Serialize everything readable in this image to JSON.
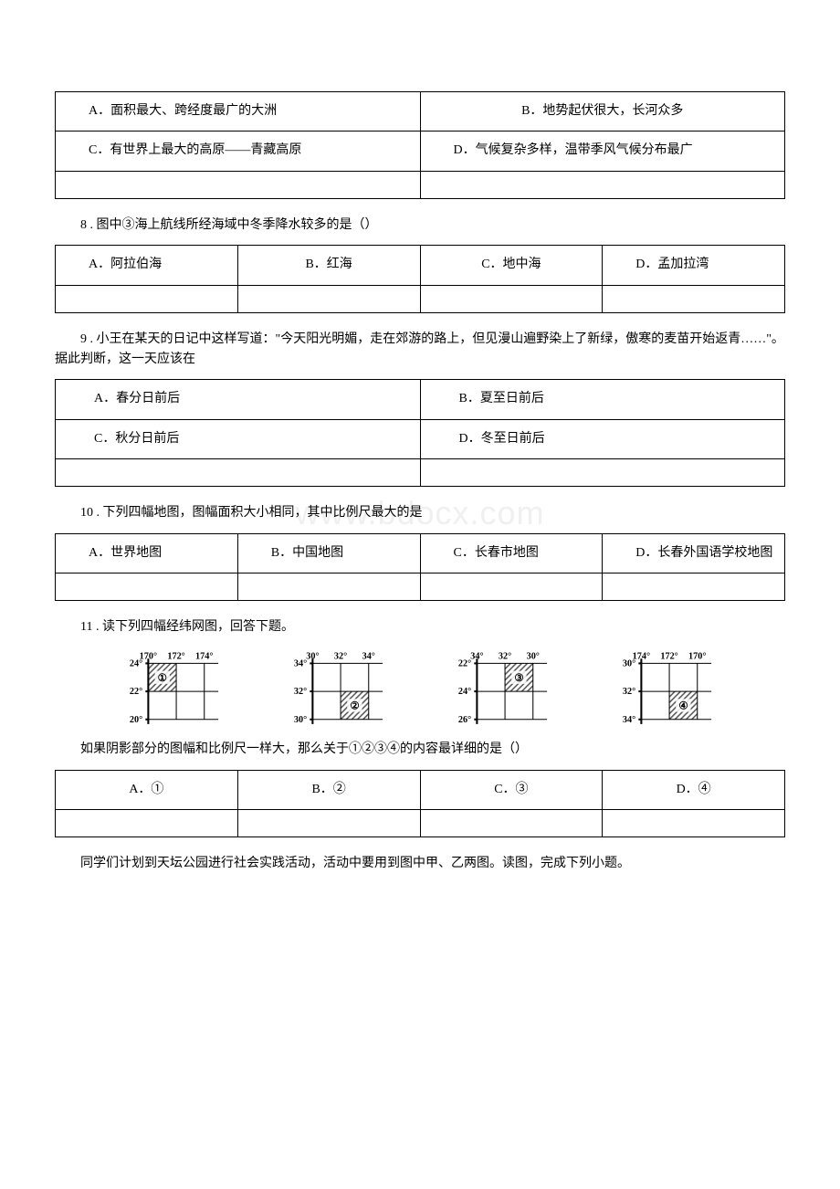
{
  "q7": {
    "options": {
      "a": "A．面积最大、跨经度最广的大洲",
      "b": "B．地势起伏很大，长河众多",
      "c": "C．有世界上最大的高原——青藏高原",
      "d": "D．气候复杂多样，温带季风气候分布最广"
    }
  },
  "q8": {
    "text": "8 . 图中③海上航线所经海域中冬季降水较多的是（）",
    "options": {
      "a": "A．阿拉伯海",
      "b": "B．红海",
      "c": "C．地中海",
      "d": "D．孟加拉湾"
    }
  },
  "q9": {
    "text": "9 . 小王在某天的日记中这样写道：\"今天阳光明媚，走在郊游的路上，但见漫山遍野染上了新绿，傲寒的麦苗开始返青……\"。据此判断，这一天应该在",
    "options": {
      "a": "A．春分日前后",
      "b": "B．夏至日前后",
      "c": "C．秋分日前后",
      "d": "D．冬至日前后"
    }
  },
  "q10": {
    "text": "10 . 下列四幅地图，图幅面积大小相同，其中比例尺最大的是",
    "options": {
      "a": "A．世界地图",
      "b": "B．中国地图",
      "c": "C．长春市地图",
      "d": "D．长春外国语学校地图"
    }
  },
  "q11": {
    "text": "11 . 读下列四幅经纬网图，回答下题。",
    "subtext": "如果阴影部分的图幅和比例尺一样大，那么关于①②③④的内容最详细的是（）",
    "options": {
      "a": "A．①",
      "b": "B．②",
      "c": "C．③",
      "d": "D．④"
    },
    "diagrams": [
      {
        "topLabels": [
          "170°",
          "172°",
          "174°"
        ],
        "leftLabels": [
          "24°",
          "22°",
          "20°"
        ],
        "shadedCell": {
          "row": 0,
          "col": 0
        },
        "markerLabel": "①"
      },
      {
        "topLabels": [
          "30°",
          "32°",
          "34°"
        ],
        "leftLabels": [
          "34°",
          "32°",
          "30°"
        ],
        "shadedCell": {
          "row": 1,
          "col": 1
        },
        "markerLabel": "②"
      },
      {
        "topLabels": [
          "34°",
          "32°",
          "30°"
        ],
        "leftLabels": [
          "22°",
          "24°",
          "26°"
        ],
        "shadedCell": {
          "row": 0,
          "col": 1
        },
        "markerLabel": "③"
      },
      {
        "topLabels": [
          "174°",
          "172°",
          "170°"
        ],
        "leftLabels": [
          "30°",
          "32°",
          "34°"
        ],
        "shadedCell": {
          "row": 1,
          "col": 1
        },
        "markerLabel": "④"
      }
    ]
  },
  "q12": {
    "text": "同学们计划到天坛公园进行社会实践活动，活动中要用到图中甲、乙两图。读图，完成下列小题。"
  },
  "watermark": "www.bdocx.com",
  "diagramStyle": {
    "gridStroke": "#000000",
    "gridStrokeWidth": 1,
    "axisStrokeWidth": 2,
    "labelFontSize": 10,
    "labelFontWeight": "bold",
    "cellSize": 30,
    "hatchColor": "#666666"
  }
}
